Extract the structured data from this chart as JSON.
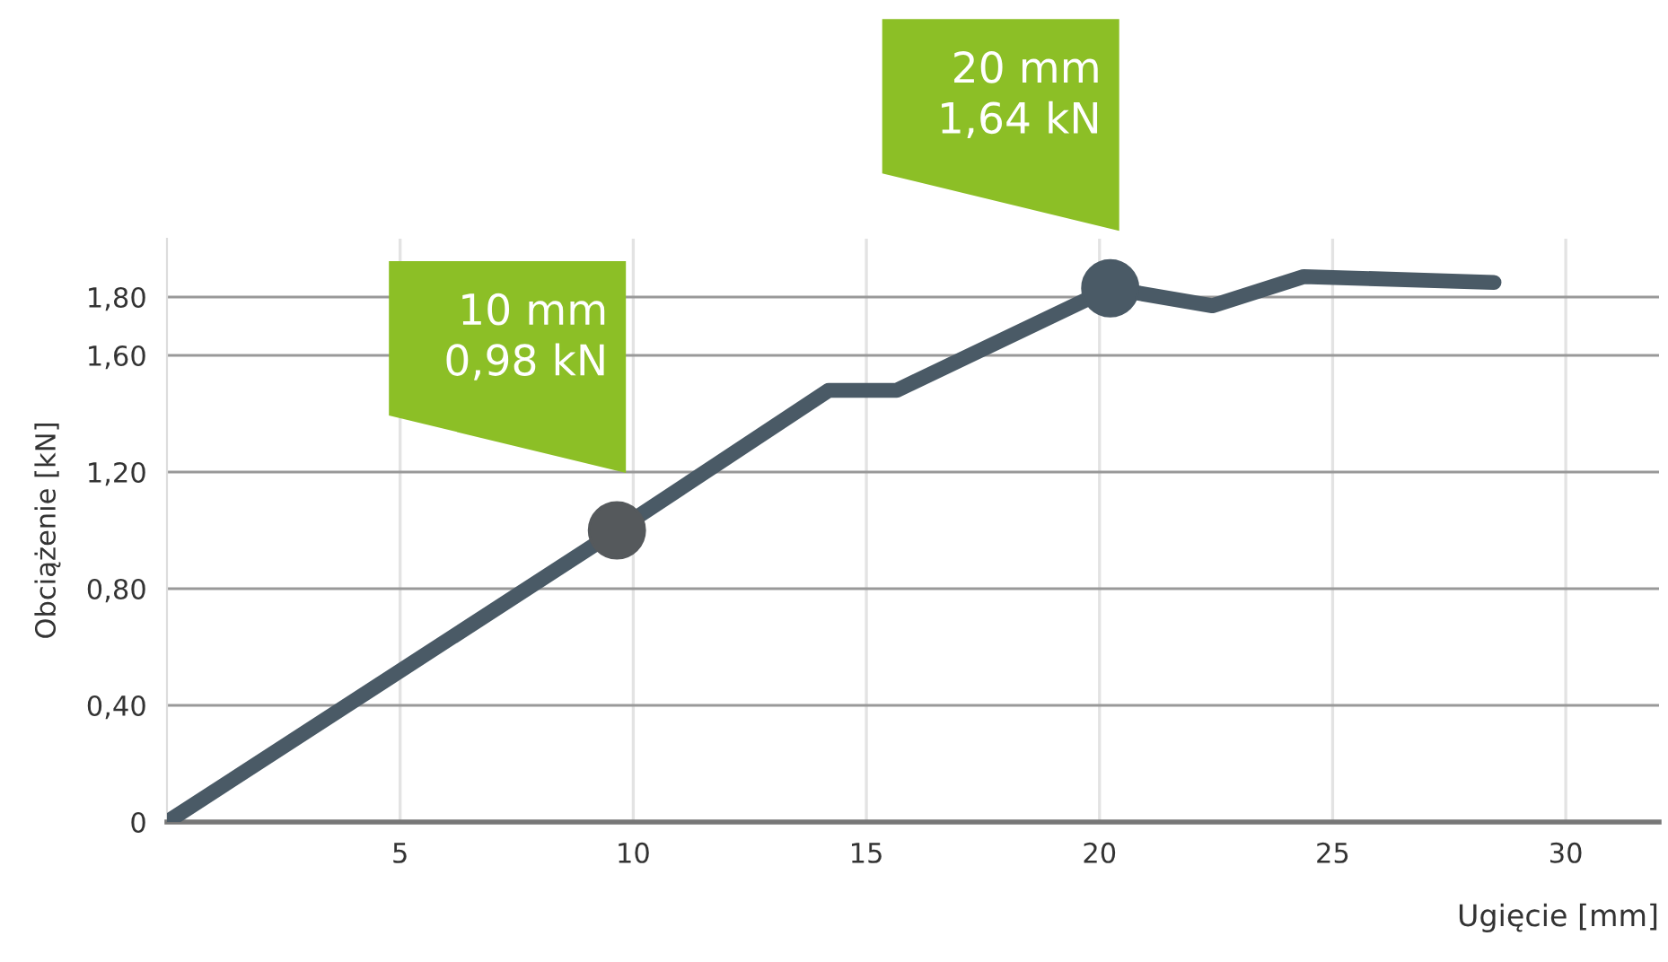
{
  "chart_data": {
    "type": "line",
    "xlabel": "Ugięcie [mm]",
    "ylabel": "Obciążenie [kN]",
    "series": [
      {
        "color": "#4a5a66",
        "x": [
          0,
          9.65,
          14.19,
          15.65,
          20.23,
          22.42,
          24.38,
          28.46
        ],
        "values": [
          0,
          1.0,
          1.48,
          1.48,
          1.83,
          1.77,
          1.87,
          1.85
        ]
      },
      {
        "type": "scatter",
        "marker": "circle",
        "colors": [
          "#55595c",
          "#4a5a66"
        ],
        "x": [
          9.65,
          20.23
        ],
        "values": [
          1.0,
          1.83
        ]
      }
    ],
    "annotations": [
      "10 mm\n0,98 kN",
      "20 mm\n1,64 kN"
    ],
    "xlim": [
      0,
      32
    ],
    "ylim": [
      0,
      2.0
    ],
    "xticks": [
      5,
      10,
      15,
      20,
      25,
      30
    ],
    "yticks": [
      0,
      {
        "value": 0.4,
        "label": "0,40"
      },
      {
        "value": 0.8,
        "label": "0,80"
      },
      {
        "value": 1.2,
        "label": "1,20"
      },
      {
        "value": 1.6,
        "label": "1,60"
      },
      {
        "value": 1.8,
        "label": "1,80"
      }
    ],
    "grid": true,
    "legend": false,
    "marker": "none",
    "line_style": "solid"
  }
}
